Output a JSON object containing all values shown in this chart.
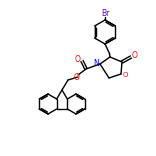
{
  "bg_color": "#ffffff",
  "bond_color": "#000000",
  "br_color": "#6600cc",
  "n_color": "#0000ff",
  "o_color": "#ff0000",
  "figsize": [
    1.52,
    1.52
  ],
  "dpi": 100
}
